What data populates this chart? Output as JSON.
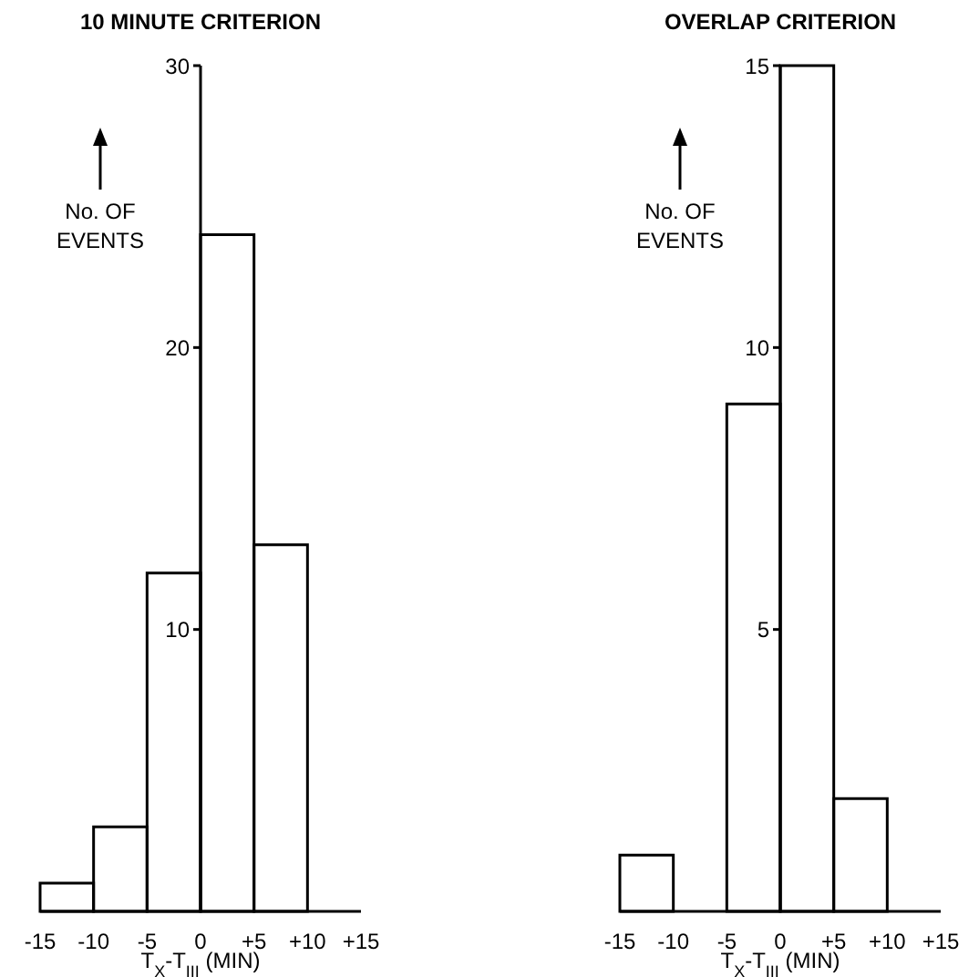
{
  "chart_data": [
    {
      "type": "histogram",
      "title": "10 MINUTE CRITERION",
      "xlabel": "T$_{X}$-T$_{III}$ (MIN)",
      "ylabel": "No. OF EVENTS",
      "bins": [
        -15,
        -10,
        -5,
        0,
        5,
        10,
        15
      ],
      "values": [
        1,
        3,
        12,
        24,
        13,
        0
      ],
      "color": "#000000",
      "xlim": [
        -15,
        15
      ],
      "xticks": [
        -15,
        -10,
        -5,
        0,
        {
          "value": 5,
          "label": "+5"
        },
        {
          "value": 10,
          "label": "+10"
        },
        {
          "value": 15,
          "label": "+15"
        }
      ],
      "ylim": [
        0,
        30
      ],
      "yticks": [
        10,
        20,
        30
      ]
    },
    {
      "type": "histogram",
      "title": "OVERLAP CRITERION",
      "xlabel": "T$_{X}$-T$_{III}$ (MIN)",
      "ylabel": "No. OF EVENTS",
      "bins": [
        -15,
        -10,
        -5,
        0,
        5,
        10,
        15
      ],
      "values": [
        1,
        0,
        9,
        15,
        2,
        0
      ],
      "color": "#000000",
      "xlim": [
        -15,
        15
      ],
      "xticks": [
        -15,
        -10,
        -5,
        0,
        {
          "value": 5,
          "label": "+5"
        },
        {
          "value": 10,
          "label": "+10"
        },
        {
          "value": 15,
          "label": "+15"
        }
      ],
      "ylim": [
        0,
        15
      ],
      "yticks": [
        5,
        10,
        15
      ]
    }
  ]
}
